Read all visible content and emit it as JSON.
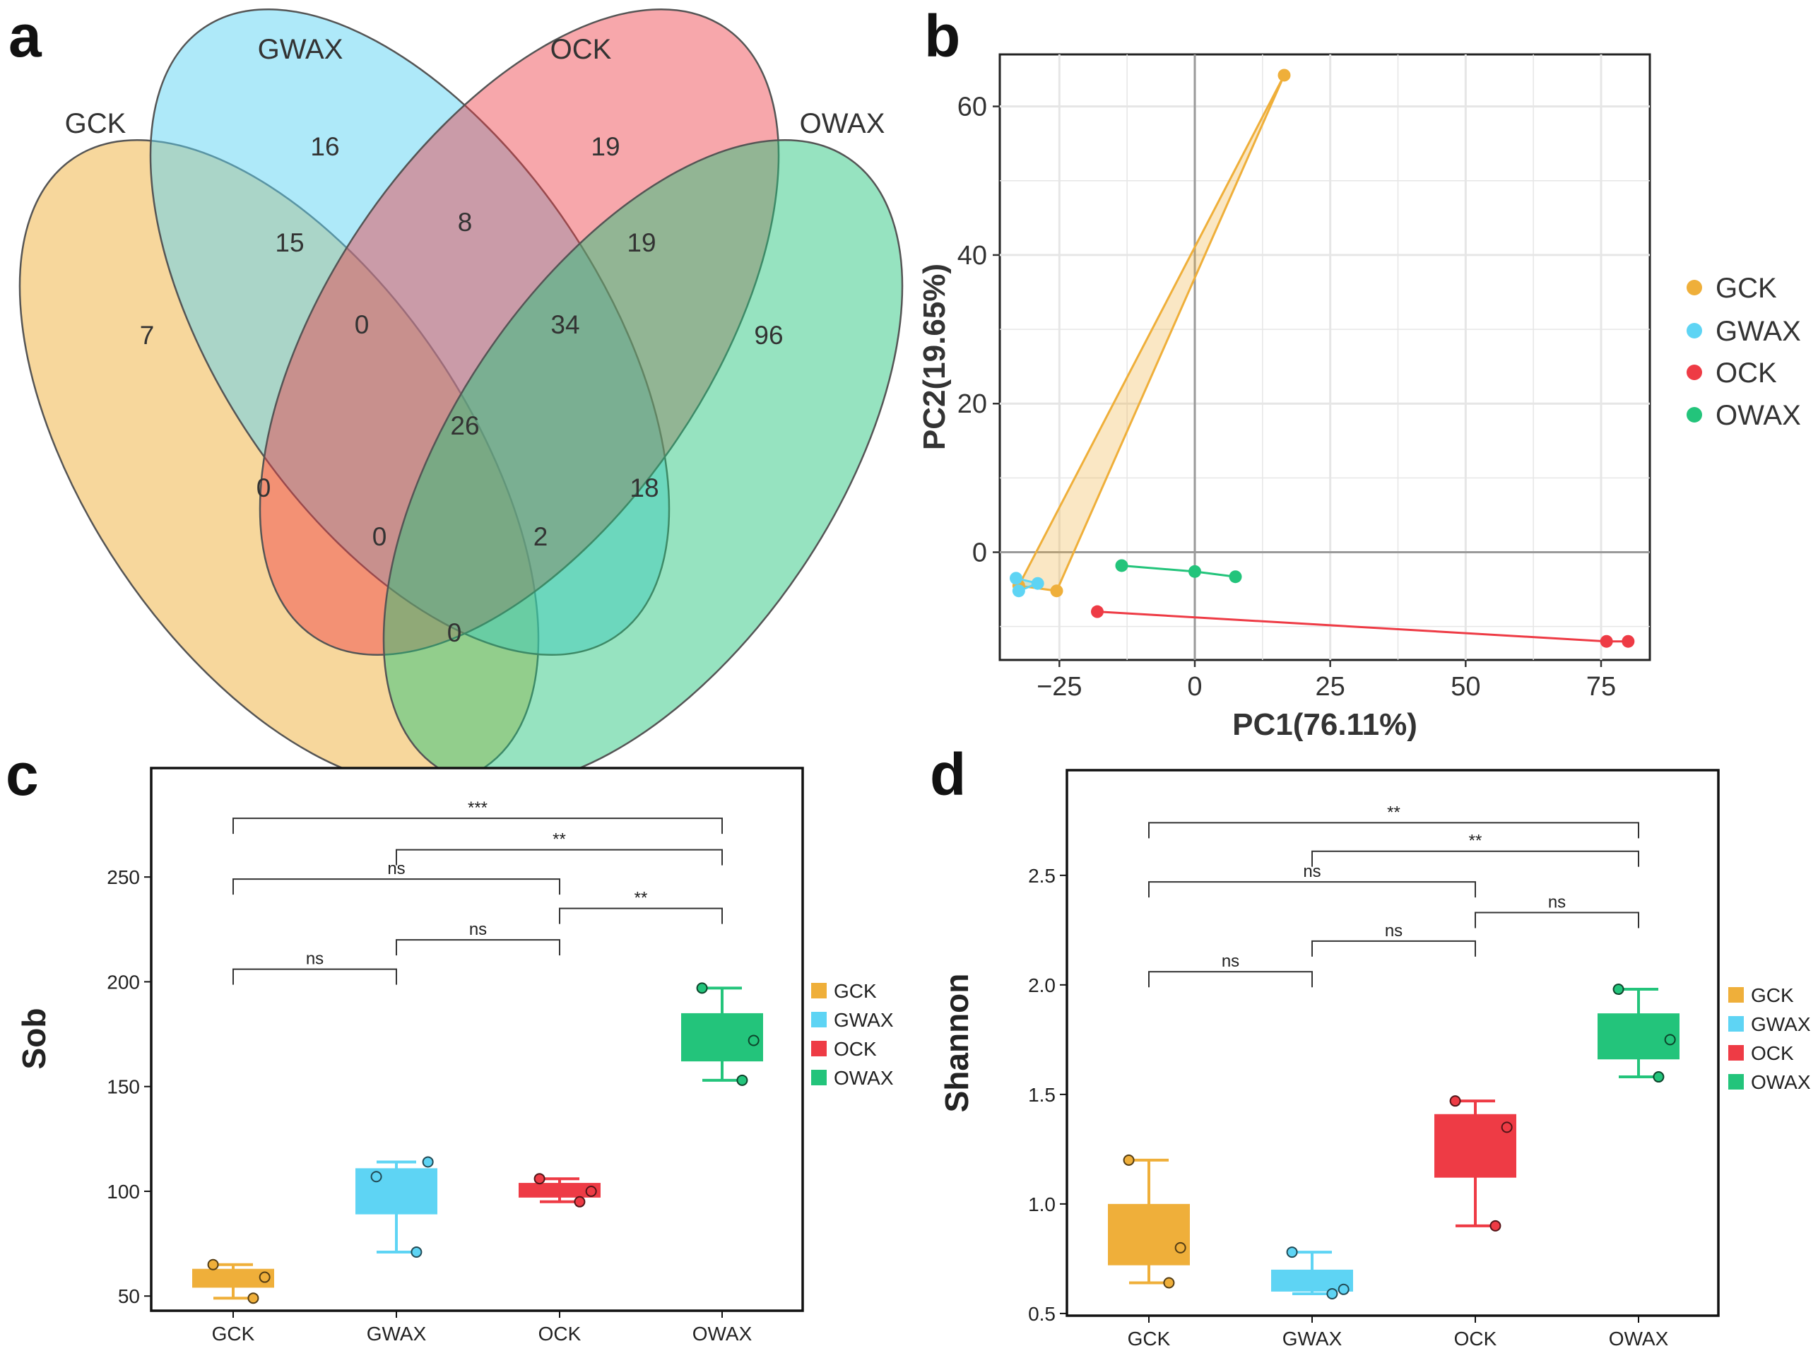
{
  "panels": {
    "a": "a",
    "b": "b",
    "c": "c",
    "d": "d"
  },
  "colors": {
    "GCK": "#efaf3a",
    "GWAX": "#5ed4f4",
    "OCK": "#ee3b45",
    "OWAX": "#23c47b"
  },
  "chart_data": [
    {
      "panel": "a",
      "type": "venn",
      "sets": [
        "GCK",
        "GWAX",
        "OCK",
        "OWAX"
      ],
      "regions": [
        {
          "sets": [
            "GCK"
          ],
          "value": "7"
        },
        {
          "sets": [
            "GWAX"
          ],
          "value": "16"
        },
        {
          "sets": [
            "OCK"
          ],
          "value": "19"
        },
        {
          "sets": [
            "OWAX"
          ],
          "value": "96"
        },
        {
          "sets": [
            "GCK",
            "GWAX"
          ],
          "value": "15"
        },
        {
          "sets": [
            "GWAX",
            "OCK"
          ],
          "value": "8"
        },
        {
          "sets": [
            "OCK",
            "OWAX"
          ],
          "value": "19"
        },
        {
          "sets": [
            "GCK",
            "GWAX",
            "OCK"
          ],
          "value": "0"
        },
        {
          "sets": [
            "GWAX",
            "OCK",
            "OWAX"
          ],
          "value": "34"
        },
        {
          "sets": [
            "GCK",
            "GWAX",
            "OCK",
            "OWAX"
          ],
          "value": "26"
        },
        {
          "sets": [
            "GCK",
            "OCK"
          ],
          "value": "0"
        },
        {
          "sets": [
            "GWAX",
            "OWAX"
          ],
          "value": "18"
        },
        {
          "sets": [
            "GCK",
            "OCK",
            "OWAX"
          ],
          "value": "0"
        },
        {
          "sets": [
            "GCK",
            "GWAX",
            "OWAX"
          ],
          "value": "2"
        },
        {
          "sets": [
            "GCK",
            "OWAX"
          ],
          "value": "0"
        }
      ]
    },
    {
      "panel": "b",
      "type": "scatter",
      "xlabel": "PC1(76.11%)",
      "ylabel": "PC2(19.65%)",
      "xlim": [
        -36,
        84
      ],
      "ylim": [
        -14.5,
        67
      ],
      "xticks": [
        -25,
        0,
        25,
        50,
        75
      ],
      "xtick_labels": [
        "−25",
        "0",
        "25",
        "50",
        "75"
      ],
      "yticks": [
        0,
        20,
        40,
        60
      ],
      "ytick_labels": [
        "0",
        "20",
        "40",
        "60"
      ],
      "series": [
        {
          "name": "GCK",
          "points": [
            [
              16.5,
              64.2
            ],
            [
              -32.5,
              -4.5
            ],
            [
              -25.5,
              -5.2
            ]
          ]
        },
        {
          "name": "GWAX",
          "points": [
            [
              -33.0,
              -3.5
            ],
            [
              -32.5,
              -5.2
            ],
            [
              -29.0,
              -4.2
            ]
          ]
        },
        {
          "name": "OCK",
          "points": [
            [
              -18.0,
              -8.0
            ],
            [
              76.0,
              -12.0
            ],
            [
              80.0,
              -12.0
            ]
          ]
        },
        {
          "name": "OWAX",
          "points": [
            [
              -13.5,
              -1.8
            ],
            [
              0.0,
              -2.6
            ],
            [
              7.5,
              -3.3
            ]
          ]
        }
      ],
      "legend": [
        "GCK",
        "GWAX",
        "OCK",
        "OWAX"
      ]
    },
    {
      "panel": "c",
      "type": "box",
      "ylabel": "Sob",
      "categories": [
        "GCK",
        "GWAX",
        "OCK",
        "OWAX"
      ],
      "ylim": [
        43,
        302
      ],
      "yticks": [
        50,
        100,
        150,
        200,
        250
      ],
      "ytick_labels": [
        "50",
        "100",
        "150",
        "200",
        "250"
      ],
      "boxes": [
        {
          "name": "GCK",
          "min": 49,
          "q1": 54,
          "median": 58,
          "q3": 63,
          "max": 65,
          "points": [
            65,
            59,
            49
          ]
        },
        {
          "name": "GWAX",
          "min": 71,
          "q1": 89,
          "median": 100,
          "q3": 111,
          "max": 114,
          "points": [
            107,
            114,
            71
          ]
        },
        {
          "name": "OCK",
          "min": 95,
          "q1": 97,
          "median": 100,
          "q3": 104,
          "max": 106,
          "points": [
            106,
            100,
            95
          ]
        },
        {
          "name": "OWAX",
          "min": 153,
          "q1": 162,
          "median": 172,
          "q3": 185,
          "max": 197,
          "points": [
            197,
            172,
            153
          ]
        }
      ],
      "comparisons": [
        {
          "from": "GCK",
          "to": "GWAX",
          "y": 206,
          "label": "ns"
        },
        {
          "from": "GWAX",
          "to": "OCK",
          "y": 220,
          "label": "ns"
        },
        {
          "from": "OCK",
          "to": "OWAX",
          "y": 235,
          "label": "**"
        },
        {
          "from": "GCK",
          "to": "OCK",
          "y": 249,
          "label": "ns"
        },
        {
          "from": "GWAX",
          "to": "OWAX",
          "y": 263,
          "label": "**"
        },
        {
          "from": "GCK",
          "to": "OWAX",
          "y": 278,
          "label": "***"
        }
      ],
      "legend": [
        "GCK",
        "GWAX",
        "OCK",
        "OWAX"
      ]
    },
    {
      "panel": "d",
      "type": "box",
      "ylabel": "Shannon",
      "categories": [
        "GCK",
        "GWAX",
        "OCK",
        "OWAX"
      ],
      "ylim": [
        0.49,
        2.98
      ],
      "yticks": [
        0.5,
        1.0,
        1.5,
        2.0,
        2.5
      ],
      "ytick_labels": [
        "0.5",
        "1.0",
        "1.5",
        "2.0",
        "2.5"
      ],
      "boxes": [
        {
          "name": "GCK",
          "min": 0.64,
          "q1": 0.72,
          "median": 0.86,
          "q3": 1.0,
          "max": 1.2,
          "points": [
            1.2,
            0.8,
            0.64
          ]
        },
        {
          "name": "GWAX",
          "min": 0.59,
          "q1": 0.6,
          "median": 0.66,
          "q3": 0.7,
          "max": 0.78,
          "points": [
            0.78,
            0.61,
            0.59
          ]
        },
        {
          "name": "OCK",
          "min": 0.9,
          "q1": 1.12,
          "median": 1.25,
          "q3": 1.41,
          "max": 1.47,
          "points": [
            1.47,
            1.35,
            0.9
          ]
        },
        {
          "name": "OWAX",
          "min": 1.58,
          "q1": 1.66,
          "median": 1.77,
          "q3": 1.87,
          "max": 1.98,
          "points": [
            1.98,
            1.75,
            1.58
          ]
        }
      ],
      "comparisons": [
        {
          "from": "GCK",
          "to": "GWAX",
          "y": 2.06,
          "label": "ns"
        },
        {
          "from": "GWAX",
          "to": "OCK",
          "y": 2.2,
          "label": "ns"
        },
        {
          "from": "OCK",
          "to": "OWAX",
          "y": 2.33,
          "label": "ns"
        },
        {
          "from": "GCK",
          "to": "OCK",
          "y": 2.47,
          "label": "ns"
        },
        {
          "from": "GWAX",
          "to": "OWAX",
          "y": 2.61,
          "label": "**"
        },
        {
          "from": "GCK",
          "to": "OWAX",
          "y": 2.74,
          "label": "**"
        }
      ],
      "legend": [
        "GCK",
        "GWAX",
        "OCK",
        "OWAX"
      ]
    }
  ]
}
